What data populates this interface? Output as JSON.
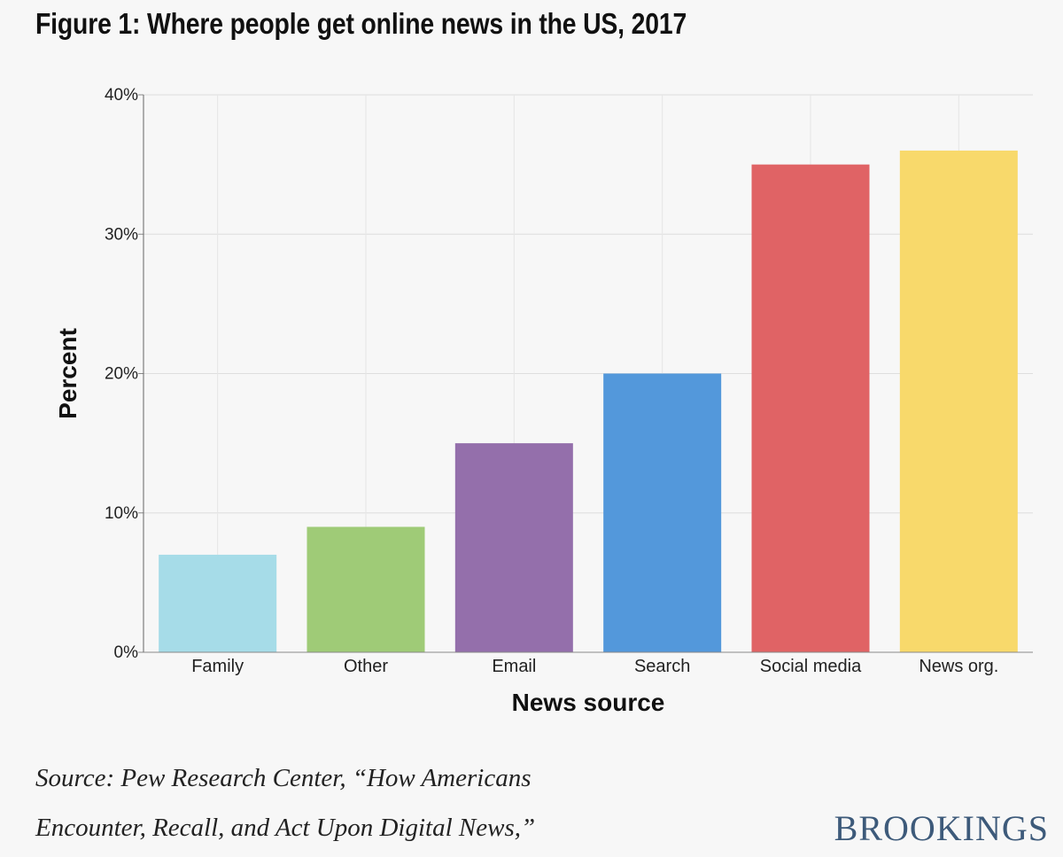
{
  "title": "Figure 1: Where people get online news in the US, 2017",
  "source": {
    "line1": "Source: Pew Research Center, “How Americans",
    "line2": "Encounter, Recall, and Act Upon Digital News,”"
  },
  "brand": "BROOKINGS",
  "chart_data": {
    "type": "bar",
    "categories": [
      "Family",
      "Other",
      "Email",
      "Search",
      "Social media",
      "News org."
    ],
    "values": [
      7,
      9,
      15,
      20,
      35,
      36
    ],
    "colors": [
      "#a6dce8",
      "#9fcb77",
      "#946fab",
      "#5398db",
      "#e06365",
      "#f8d96b"
    ],
    "xlabel": "News source",
    "ylabel": "Percent",
    "ylim": [
      0,
      40
    ],
    "yticks": [
      0,
      10,
      20,
      30,
      40
    ],
    "ytick_labels": [
      "0%",
      "10%",
      "20%",
      "30%",
      "40%"
    ],
    "grid": true
  }
}
